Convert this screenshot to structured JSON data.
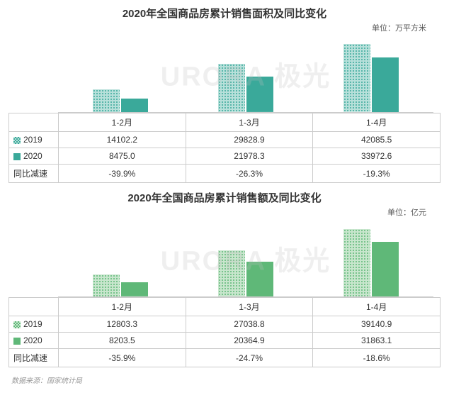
{
  "watermark": "URORA 极光",
  "footer": "数据来源：国家统计局",
  "charts": [
    {
      "title": "2020年全国商品房累计销售面积及同比变化",
      "unit": "单位：万平方米",
      "type": "bar",
      "categories": [
        "1-2月",
        "1-3月",
        "1-4月"
      ],
      "series": [
        {
          "name": "2019",
          "color_fill": "url(#dotsTeal)",
          "swatch_bg": "repeating-conic-gradient(#3aa99a 0 25%, #b7e0da 0 50%) 0 0/4px 4px",
          "values": [
            14102.2,
            29828.9,
            42085.5
          ]
        },
        {
          "name": "2020",
          "color_fill": "#3aa99a",
          "swatch_bg": "#3aa99a",
          "values": [
            8475.0,
            21978.3,
            33972.6
          ]
        }
      ],
      "yoy_label": "同比减速",
      "yoy": [
        "-39.9%",
        "-26.3%",
        "-19.3%"
      ],
      "ylim_max": 48000
    },
    {
      "title": "2020年全国商品房累计销售额及同比变化",
      "unit": "单位：亿元",
      "type": "bar",
      "categories": [
        "1-2月",
        "1-3月",
        "1-4月"
      ],
      "series": [
        {
          "name": "2019",
          "color_fill": "url(#dotsGreen)",
          "swatch_bg": "repeating-conic-gradient(#5fb878 0 25%, #c8e6cd 0 50%) 0 0/4px 4px",
          "values": [
            12803.3,
            27038.8,
            39140.9
          ]
        },
        {
          "name": "2020",
          "color_fill": "#5fb878",
          "swatch_bg": "#5fb878",
          "values": [
            8203.5,
            20364.9,
            31863.1
          ]
        }
      ],
      "yoy_label": "同比减速",
      "yoy": [
        "-35.9%",
        "-24.7%",
        "-18.6%"
      ],
      "ylim_max": 45000
    }
  ]
}
